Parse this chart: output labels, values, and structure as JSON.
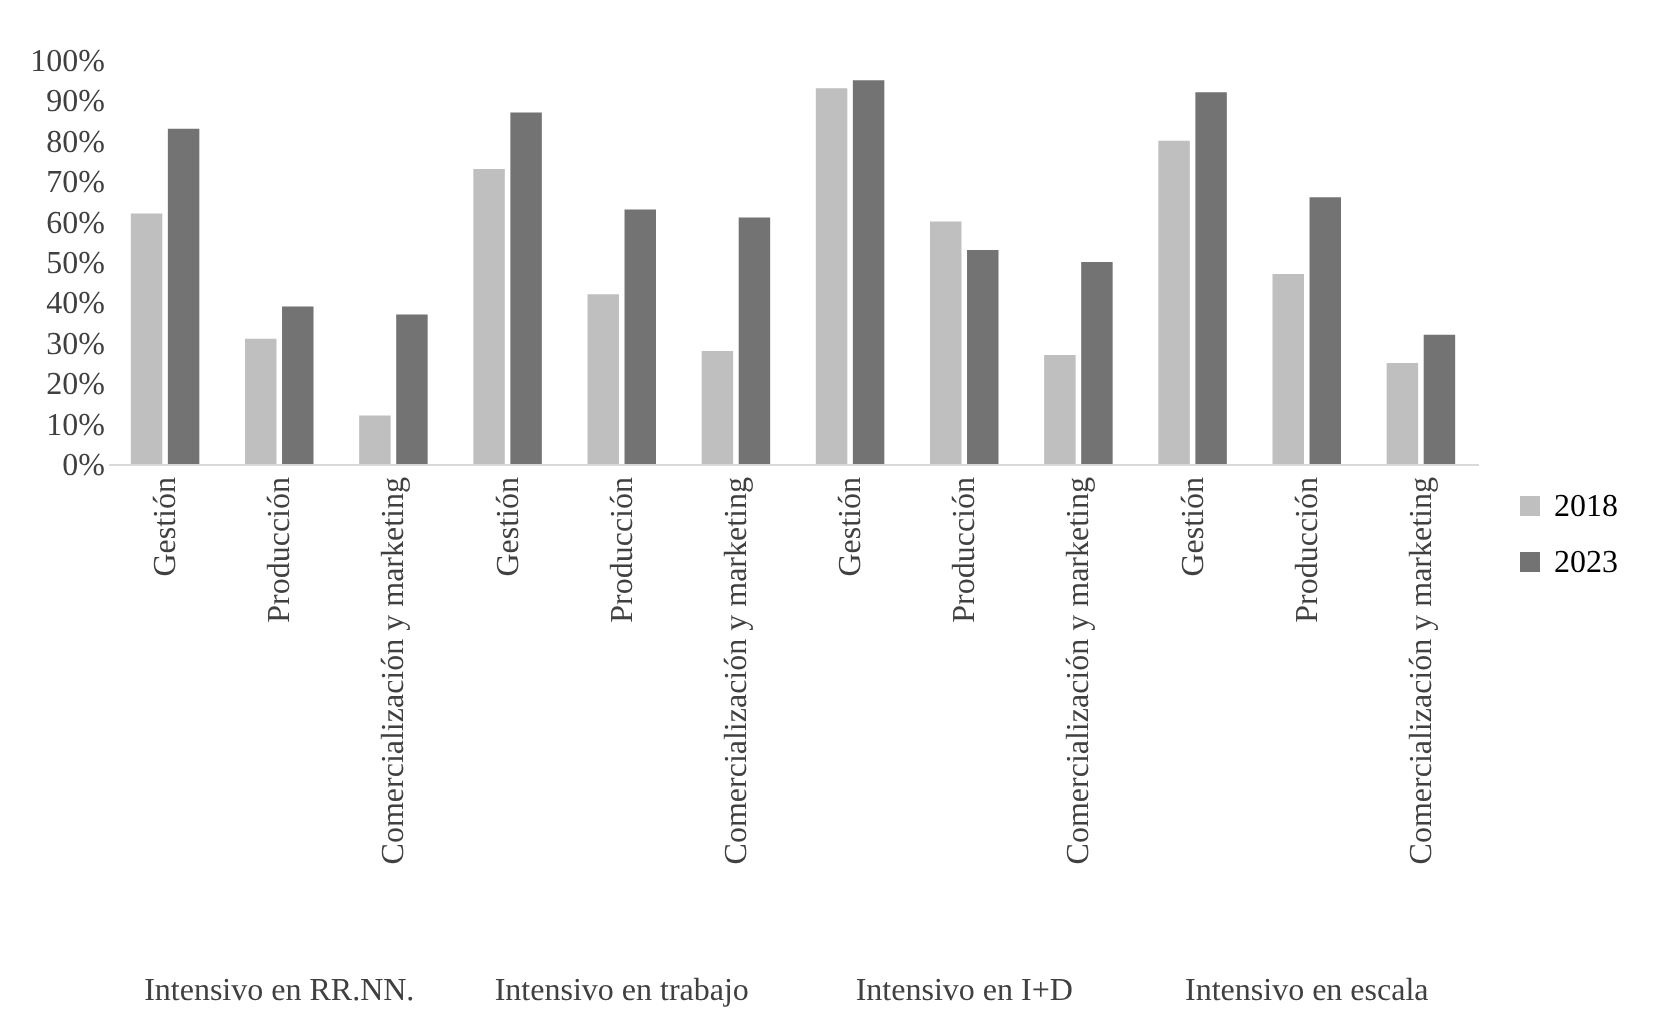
{
  "chart_data": {
    "type": "bar",
    "categories": [
      "Gestión",
      "Producción",
      "Comercialización y marketing",
      "Gestión",
      "Producción",
      "Comercialización y marketing",
      "Gestión",
      "Producción",
      "Comercialización y marketing",
      "Gestión",
      "Producción",
      "Comercialización y marketing"
    ],
    "series": [
      {
        "name": "2018",
        "color": "#bfbfbf",
        "values": [
          62,
          31,
          12,
          73,
          42,
          28,
          93,
          60,
          27,
          80,
          47,
          25
        ]
      },
      {
        "name": "2023",
        "color": "#737373",
        "values": [
          83,
          39,
          37,
          87,
          63,
          61,
          95,
          53,
          50,
          92,
          66,
          32
        ]
      }
    ],
    "ylim": [
      0,
      100
    ],
    "yticks": [
      {
        "value": 0,
        "label": "0%"
      },
      {
        "value": 10,
        "label": "10%"
      },
      {
        "value": 20,
        "label": "20%"
      },
      {
        "value": 30,
        "label": "30%"
      },
      {
        "value": 40,
        "label": "40%"
      },
      {
        "value": 50,
        "label": "50%"
      },
      {
        "value": 60,
        "label": "60%"
      },
      {
        "value": 70,
        "label": "70%"
      },
      {
        "value": 80,
        "label": "80%"
      },
      {
        "value": 90,
        "label": "90%"
      },
      {
        "value": 100,
        "label": "100%"
      }
    ],
    "legend": "right",
    "annotations": [
      "Intensivo en RR.NN.",
      "Intensivo en trabajo",
      "Intensivo en I+D",
      "Intensivo en escala"
    ]
  }
}
